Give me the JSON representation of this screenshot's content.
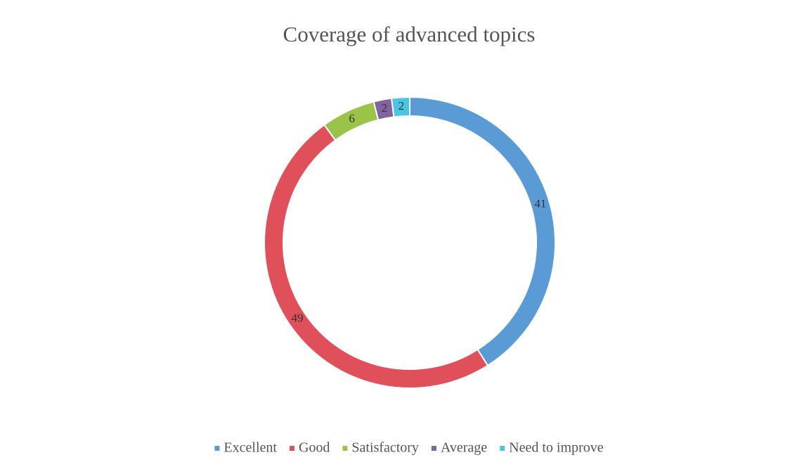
{
  "chart_data": {
    "type": "donut",
    "title": "Coverage of advanced topics",
    "categories": [
      "Excellent",
      "Good",
      "Satisfactory",
      "Average",
      "Need to improve"
    ],
    "values": [
      41,
      49,
      6,
      2,
      2
    ],
    "colors": [
      "#5b9bd5",
      "#e0505a",
      "#9bc34a",
      "#8064a2",
      "#4bc6e0"
    ],
    "legend": "bottom"
  }
}
